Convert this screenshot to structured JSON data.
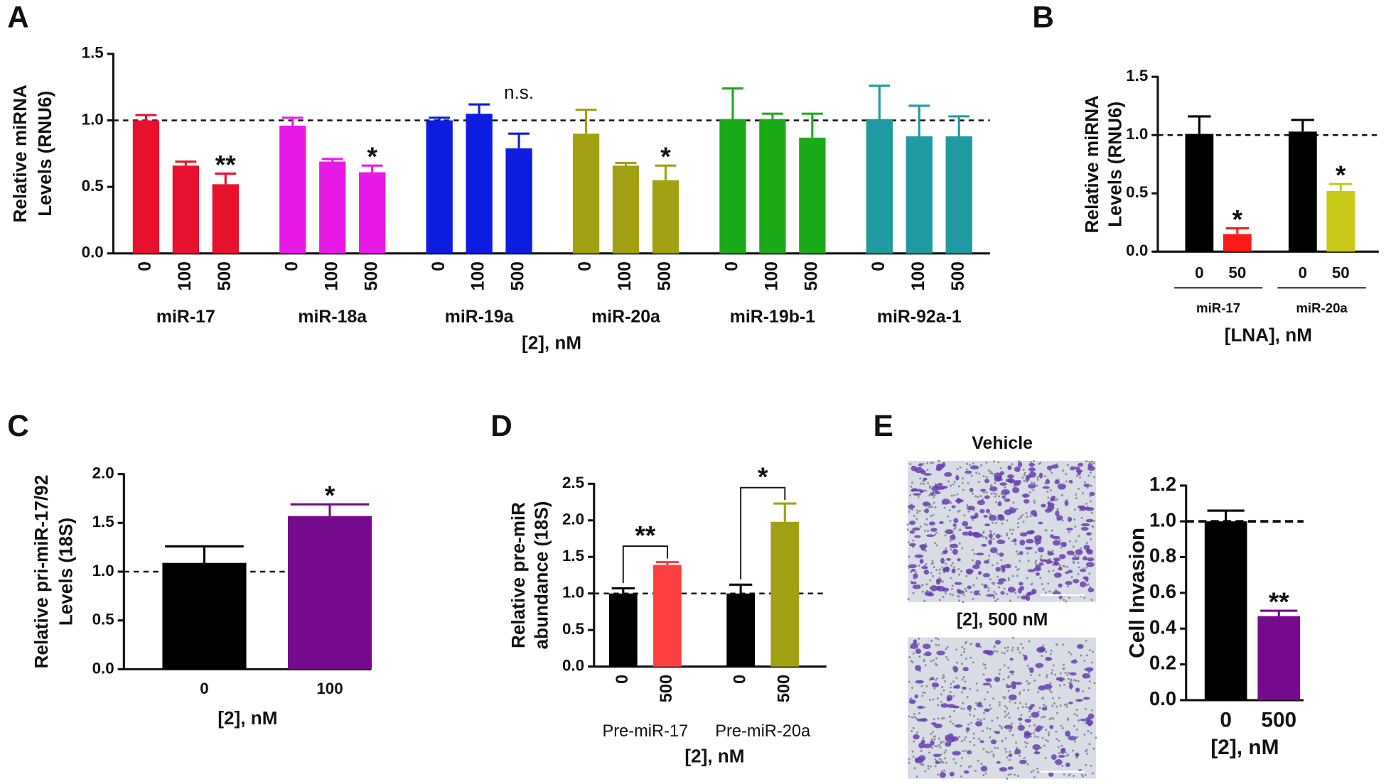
{
  "chart_data": [
    {
      "panel": "A",
      "type": "bar",
      "ylabel": [
        "Relative  miRNA",
        "Levels  (RNU6)"
      ],
      "xlabel": "[2], nM",
      "ylim": [
        0,
        1.5
      ],
      "yticks": [
        {
          "value": 0,
          "label": "0.0"
        },
        0.5,
        {
          "value": 1,
          "label": "1.0"
        },
        1.5
      ],
      "refline": 1,
      "categories": [
        "0",
        "100",
        "500"
      ],
      "groups": [
        {
          "name": "miR-17",
          "color": "#e8112d",
          "values": [
            1.0,
            0.66,
            0.52
          ],
          "errors": [
            0.04,
            0.03,
            0.08
          ],
          "annotations": [
            null,
            null,
            "**"
          ]
        },
        {
          "name": "miR-18a",
          "color": "#e81ae8",
          "values": [
            0.96,
            0.69,
            0.61
          ],
          "errors": [
            0.06,
            0.02,
            0.05
          ],
          "annotations": [
            null,
            null,
            "*"
          ]
        },
        {
          "name": "miR-19a",
          "color": "#0d1de0",
          "values": [
            1.0,
            1.05,
            0.79
          ],
          "errors": [
            0.02,
            0.07,
            0.11
          ],
          "annotations": [
            null,
            "n.s.",
            null
          ]
        },
        {
          "name": "miR-20a",
          "color": "#a0a012",
          "values": [
            0.9,
            0.66,
            0.55
          ],
          "errors": [
            0.18,
            0.02,
            0.11
          ],
          "annotations": [
            null,
            null,
            "*"
          ]
        },
        {
          "name": "miR-19b-1",
          "color": "#1aaa1a",
          "values": [
            1.01,
            1.01,
            0.87
          ],
          "errors": [
            0.23,
            0.04,
            0.18
          ],
          "annotations": [
            null,
            null,
            null
          ]
        },
        {
          "name": "miR-92a-1",
          "color": "#1f9aa0",
          "values": [
            1.01,
            0.88,
            0.88
          ],
          "errors": [
            0.25,
            0.23,
            0.15
          ],
          "annotations": [
            null,
            null,
            null
          ]
        }
      ]
    },
    {
      "panel": "B",
      "type": "bar",
      "ylabel": [
        "Relative miRNA",
        "Levels (RNU6)"
      ],
      "xlabel": "[LNA], nM",
      "ylim": [
        0,
        1.5
      ],
      "yticks": [
        {
          "value": 0,
          "label": "0.0"
        },
        0.5,
        {
          "value": 1,
          "label": "1.0"
        },
        1.5
      ],
      "refline": 1,
      "categories": [
        "0",
        "50"
      ],
      "groups": [
        {
          "name": "miR-17",
          "colors": [
            "#000000",
            "#ff1a1a"
          ],
          "values": [
            1.01,
            0.15
          ],
          "errors": [
            0.15,
            0.05
          ],
          "annotations": [
            null,
            "*"
          ]
        },
        {
          "name": "miR-20a",
          "colors": [
            "#000000",
            "#c8c818"
          ],
          "values": [
            1.03,
            0.52
          ],
          "errors": [
            0.1,
            0.06
          ],
          "annotations": [
            null,
            "*"
          ]
        }
      ]
    },
    {
      "panel": "C",
      "type": "bar",
      "ylabel": [
        "Relative pri-miR-17/92",
        "Levels (18S)"
      ],
      "xlabel": "[2], nM",
      "ylim": [
        0,
        2
      ],
      "yticks": [
        {
          "value": 0,
          "label": "0.0"
        },
        0.5,
        {
          "value": 1,
          "label": "1.0"
        },
        1.5,
        {
          "value": 2,
          "label": "2.0"
        }
      ],
      "refline": 1,
      "categories": [
        "0",
        "100"
      ],
      "groups": [
        {
          "colors": [
            "#000000",
            "#760a8c"
          ],
          "values": [
            1.09,
            1.57
          ],
          "errors": [
            0.17,
            0.12
          ],
          "annotations": [
            null,
            "*"
          ]
        }
      ]
    },
    {
      "panel": "D",
      "type": "bar",
      "ylabel": [
        "Relative pre-miR",
        "abundance (18S)"
      ],
      "xlabel": "[2], nM",
      "ylim": [
        0,
        2.5
      ],
      "yticks": [
        {
          "value": 0,
          "label": "0.0"
        },
        0.5,
        {
          "value": 1,
          "label": "1.0"
        },
        1.5,
        {
          "value": 2,
          "label": "2.0"
        },
        2.5
      ],
      "refline": 1,
      "categories": [
        "0",
        "500"
      ],
      "groups": [
        {
          "name": "Pre-miR-17",
          "colors": [
            "#000000",
            "#ff4040"
          ],
          "values": [
            1.0,
            1.39
          ],
          "errors": [
            0.07,
            0.04
          ],
          "bracket": "**"
        },
        {
          "name": "Pre-miR-20a",
          "colors": [
            "#000000",
            "#a0a012"
          ],
          "values": [
            1.0,
            1.98
          ],
          "errors": [
            0.12,
            0.25
          ],
          "bracket": "*"
        }
      ]
    },
    {
      "panel": "E",
      "type": "bar",
      "images": [
        "Vehicle",
        "[2], 500 nM"
      ],
      "ylabel": [
        "Cell Invasion"
      ],
      "xlabel": "[2], nM",
      "ylim": [
        0,
        1.2
      ],
      "yticks": [
        {
          "value": 0,
          "label": "0.0"
        },
        0.2,
        0.4,
        0.6,
        0.8,
        {
          "value": 1,
          "label": "1.0"
        },
        1.2
      ],
      "refline": 1,
      "categories": [
        "0",
        "500"
      ],
      "groups": [
        {
          "colors": [
            "#000000",
            "#760a8c"
          ],
          "values": [
            1.0,
            0.47
          ],
          "errors": [
            0.06,
            0.03
          ],
          "annotations": [
            null,
            "**"
          ]
        }
      ]
    }
  ]
}
